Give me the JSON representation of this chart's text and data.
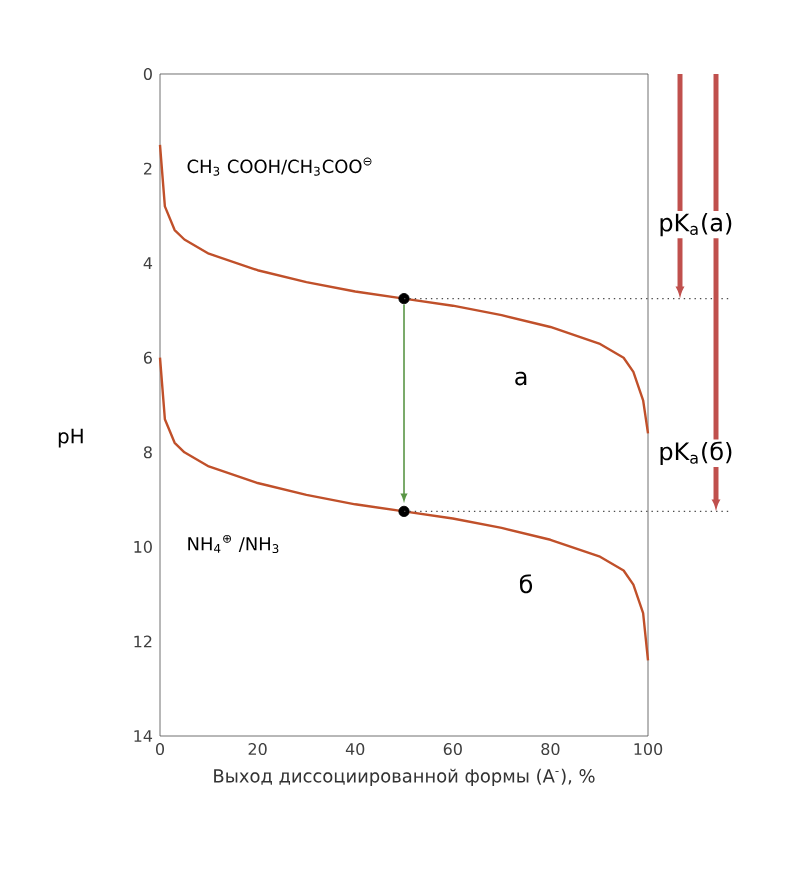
{
  "chart_data": {
    "type": "line",
    "xlabel": "Выход диссоциированной формы (A$^{-}$), %",
    "ylabel": "pH",
    "x": [
      0,
      1,
      3,
      5,
      10,
      20,
      30,
      40,
      50,
      60,
      70,
      80,
      90,
      95,
      97,
      99,
      100
    ],
    "series": [
      {
        "name": "CH$_{3}$ COOH/CH$_{3}$COO$^{⊖}$",
        "color": "#c0502a",
        "marker": "none",
        "values": [
          1.5,
          2.8,
          3.3,
          3.5,
          3.8,
          4.15,
          4.4,
          4.6,
          4.75,
          4.9,
          5.1,
          5.35,
          5.7,
          6.0,
          6.3,
          6.9,
          7.6
        ]
      },
      {
        "name": "NH$_{4}$$^{⊕}$ /NH$_{3}$",
        "color": "#c0502a",
        "marker": "none",
        "values": [
          6.0,
          7.3,
          7.8,
          8.0,
          8.3,
          8.65,
          8.9,
          9.1,
          9.25,
          9.4,
          9.6,
          9.85,
          10.2,
          10.5,
          10.8,
          11.4,
          12.4
        ]
      },
      {
        "type": "scatter",
        "color": "#000000",
        "x": [
          50,
          50
        ],
        "values": [
          4.75,
          9.25
        ],
        "marker": "circle"
      }
    ],
    "xlim": [
      0,
      100
    ],
    "ylim": [
      14,
      0
    ],
    "xticks": [
      0,
      20,
      40,
      60,
      80,
      100
    ],
    "yticks": [
      0,
      2,
      4,
      6,
      8,
      10,
      12,
      14
    ],
    "ref_lines": [
      {
        "axis": "y",
        "value": 4.75,
        "label": "pK$_{a}$(a)",
        "line_style": "dotted",
        "color": "#4c4c4c"
      },
      {
        "axis": "y",
        "value": 9.25,
        "label": "pK$_{a}$(б)",
        "line_style": "dotted",
        "color": "#4c4c4c"
      }
    ],
    "annotations": [
      "a",
      "б"
    ],
    "line_style": "solid",
    "grid": false
  }
}
